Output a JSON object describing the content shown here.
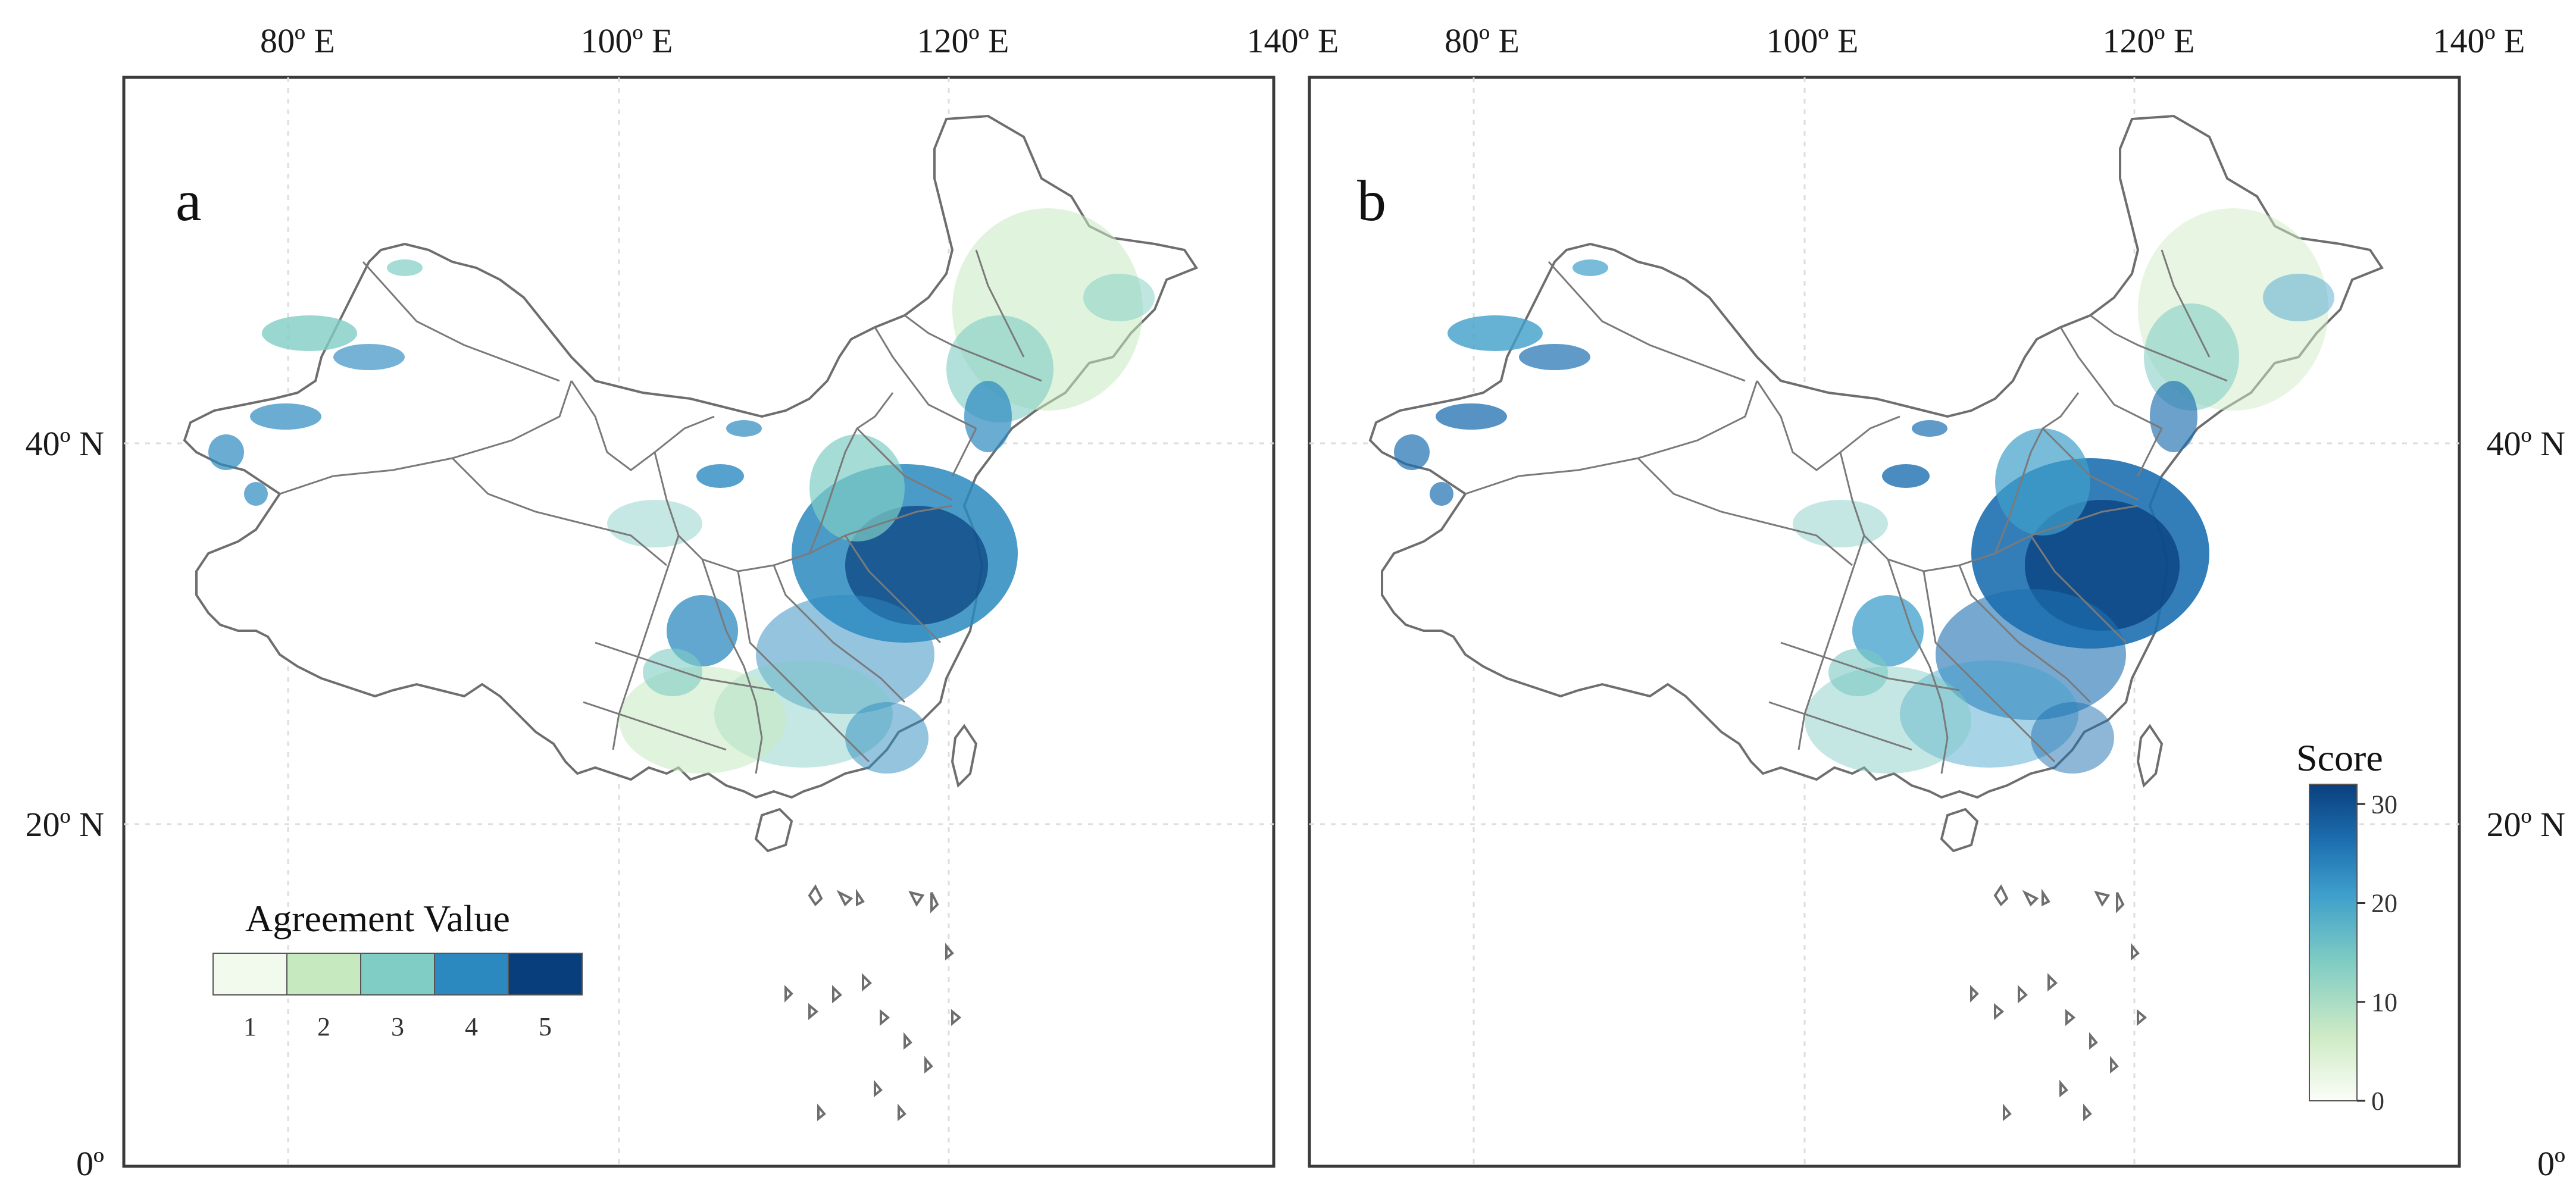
{
  "x_ticks": [
    "80º E",
    "100º E",
    "120º E",
    "140º E"
  ],
  "y_ticks": [
    "40º N",
    "20º N",
    "0º"
  ],
  "panel_a": {
    "label": "a",
    "legend": {
      "title": "Agreement Value",
      "classes": [
        {
          "label": "1",
          "color": "#f2faee"
        },
        {
          "label": "2",
          "color": "#c7e9c0"
        },
        {
          "label": "3",
          "color": "#7fcdc4"
        },
        {
          "label": "4",
          "color": "#2c89c0"
        },
        {
          "label": "5",
          "color": "#083e7c"
        }
      ]
    }
  },
  "panel_b": {
    "label": "b",
    "colorbar": {
      "title": "Score",
      "ticks": [
        "0",
        "10",
        "20",
        "30"
      ],
      "range": [
        0,
        32
      ],
      "colors": [
        "#fbfdf8",
        "#cfebc6",
        "#7ccac3",
        "#3f9fcb",
        "#1d6fb0",
        "#0a3f7e"
      ]
    }
  },
  "colors": {
    "frame": "#3a3a3a",
    "grid": "#dddddd",
    "boundary": "#6e6e6e"
  }
}
